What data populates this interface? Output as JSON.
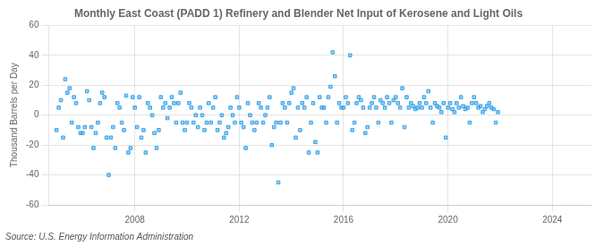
{
  "chart_data": {
    "type": "scatter",
    "title": "Monthly East Coast (PADD 1) Refinery and Blender Net Input of Kerosene and Light Oils",
    "ylabel": "Thousand Barrels per Day",
    "annotations": [
      "Source: U.S. Energy Information Administration"
    ],
    "marker": "square",
    "grid": true,
    "xlim": [
      2004.7,
      2025.5
    ],
    "xticks": [
      2008,
      2012,
      2016,
      2020,
      2024
    ],
    "ylim": [
      -60,
      60
    ],
    "yticks": [
      -60,
      -40,
      -20,
      0,
      20,
      40,
      60
    ],
    "x": [
      2005,
      2005.0833333333,
      2005.1666666667,
      2005.25,
      2005.3333333333,
      2005.4166666667,
      2005.5,
      2005.5833333333,
      2005.6666666667,
      2005.75,
      2005.8333333333,
      2005.9166666667,
      2006,
      2006.0833333333,
      2006.1666666667,
      2006.25,
      2006.3333333333,
      2006.4166666667,
      2006.5,
      2006.5833333333,
      2006.6666666667,
      2006.75,
      2006.8333333333,
      2006.9166666667,
      2007,
      2007.0833333333,
      2007.1666666667,
      2007.25,
      2007.3333333333,
      2007.4166666667,
      2007.5,
      2007.5833333333,
      2007.6666666667,
      2007.75,
      2007.8333333333,
      2007.9166666667,
      2008,
      2008.0833333333,
      2008.1666666667,
      2008.25,
      2008.3333333333,
      2008.4166666667,
      2008.5,
      2008.5833333333,
      2008.6666666667,
      2008.75,
      2008.8333333333,
      2008.9166666667,
      2009,
      2009.0833333333,
      2009.1666666667,
      2009.25,
      2009.3333333333,
      2009.4166666667,
      2009.5,
      2009.5833333333,
      2009.6666666667,
      2009.75,
      2009.8333333333,
      2009.9166666667,
      2010,
      2010.0833333333,
      2010.1666666667,
      2010.25,
      2010.3333333333,
      2010.4166666667,
      2010.5,
      2010.5833333333,
      2010.6666666667,
      2010.75,
      2010.8333333333,
      2010.9166666667,
      2011,
      2011.0833333333,
      2011.1666666667,
      2011.25,
      2011.3333333333,
      2011.4166666667,
      2011.5,
      2011.5833333333,
      2011.6666666667,
      2011.75,
      2011.8333333333,
      2011.9166666667,
      2012,
      2012.0833333333,
      2012.1666666667,
      2012.25,
      2012.3333333333,
      2012.4166666667,
      2012.5,
      2012.5833333333,
      2012.6666666667,
      2012.75,
      2012.8333333333,
      2012.9166666667,
      2013,
      2013.0833333333,
      2013.1666666667,
      2013.25,
      2013.3333333333,
      2013.4166666667,
      2013.5,
      2013.5833333333,
      2013.6666666667,
      2013.75,
      2013.8333333333,
      2013.9166666667,
      2014,
      2014.0833333333,
      2014.1666666667,
      2014.25,
      2014.3333333333,
      2014.4166666667,
      2014.5,
      2014.5833333333,
      2014.6666666667,
      2014.75,
      2014.8333333333,
      2014.9166666667,
      2015,
      2015.0833333333,
      2015.1666666667,
      2015.25,
      2015.3333333333,
      2015.4166666667,
      2015.5,
      2015.5833333333,
      2015.6666666667,
      2015.75,
      2015.8333333333,
      2015.9166666667,
      2016,
      2016.0833333333,
      2016.1666666667,
      2016.25,
      2016.3333333333,
      2016.4166666667,
      2016.5,
      2016.5833333333,
      2016.6666666667,
      2016.75,
      2016.8333333333,
      2016.9166666667,
      2017,
      2017.0833333333,
      2017.1666666667,
      2017.25,
      2017.3333333333,
      2017.4166666667,
      2017.5,
      2017.5833333333,
      2017.6666666667,
      2017.75,
      2017.8333333333,
      2017.9166666667,
      2018,
      2018.0833333333,
      2018.1666666667,
      2018.25,
      2018.3333333333,
      2018.4166666667,
      2018.5,
      2018.5833333333,
      2018.6666666667,
      2018.75,
      2018.8333333333,
      2018.9166666667,
      2019,
      2019.0833333333,
      2019.1666666667,
      2019.25,
      2019.3333333333,
      2019.4166666667,
      2019.5,
      2019.5833333333,
      2019.6666666667,
      2019.75,
      2019.8333333333,
      2019.9166666667,
      2020,
      2020.0833333333,
      2020.1666666667,
      2020.25,
      2020.3333333333,
      2020.4166666667,
      2020.5,
      2020.5833333333,
      2020.6666666667,
      2020.75,
      2020.8333333333,
      2020.9166666667,
      2021,
      2021.0833333333,
      2021.1666666667,
      2021.25,
      2021.3333333333,
      2021.4166666667,
      2021.5,
      2021.5833333333,
      2021.6666666667,
      2021.75,
      2021.8333333333,
      2021.9166666667
    ],
    "values": [
      -10,
      5,
      10,
      -15,
      24,
      15,
      18,
      -5,
      12,
      8,
      -8,
      -12,
      -12,
      -8,
      16,
      10,
      -8,
      -22,
      -12,
      -5,
      8,
      15,
      12,
      -15,
      -40,
      -15,
      -8,
      -22,
      8,
      5,
      -5,
      -10,
      13,
      -25,
      -22,
      12,
      5,
      -8,
      12,
      -15,
      -10,
      -25,
      8,
      5,
      0,
      -12,
      -22,
      -10,
      12,
      5,
      8,
      -2,
      5,
      12,
      8,
      -5,
      8,
      15,
      -5,
      -10,
      -5,
      8,
      5,
      -5,
      0,
      -8,
      5,
      0,
      -10,
      -5,
      8,
      -5,
      5,
      12,
      -10,
      -5,
      0,
      -15,
      -12,
      -8,
      5,
      0,
      -5,
      12,
      5,
      -5,
      -8,
      -22,
      8,
      0,
      -5,
      -10,
      -5,
      8,
      5,
      -5,
      0,
      5,
      12,
      -20,
      -8,
      -5,
      -45,
      -5,
      8,
      5,
      -5,
      8,
      15,
      18,
      -15,
      5,
      -10,
      8,
      5,
      12,
      -25,
      -5,
      8,
      -18,
      -25,
      12,
      5,
      5,
      -5,
      12,
      19,
      42,
      26,
      -5,
      8,
      5,
      5,
      12,
      8,
      40,
      -10,
      -5,
      8,
      12,
      10,
      5,
      -12,
      -8,
      5,
      8,
      12,
      5,
      -5,
      10,
      8,
      5,
      12,
      8,
      -5,
      10,
      12,
      8,
      5,
      18,
      -8,
      12,
      5,
      8,
      6,
      4,
      5,
      8,
      5,
      12,
      8,
      16,
      5,
      -5,
      8,
      6,
      5,
      2,
      8,
      -15,
      5,
      8,
      4,
      2,
      8,
      5,
      12,
      6,
      4,
      5,
      -5,
      8,
      12,
      8,
      5,
      6,
      2,
      4,
      6,
      8,
      5,
      4,
      -5,
      2
    ]
  }
}
